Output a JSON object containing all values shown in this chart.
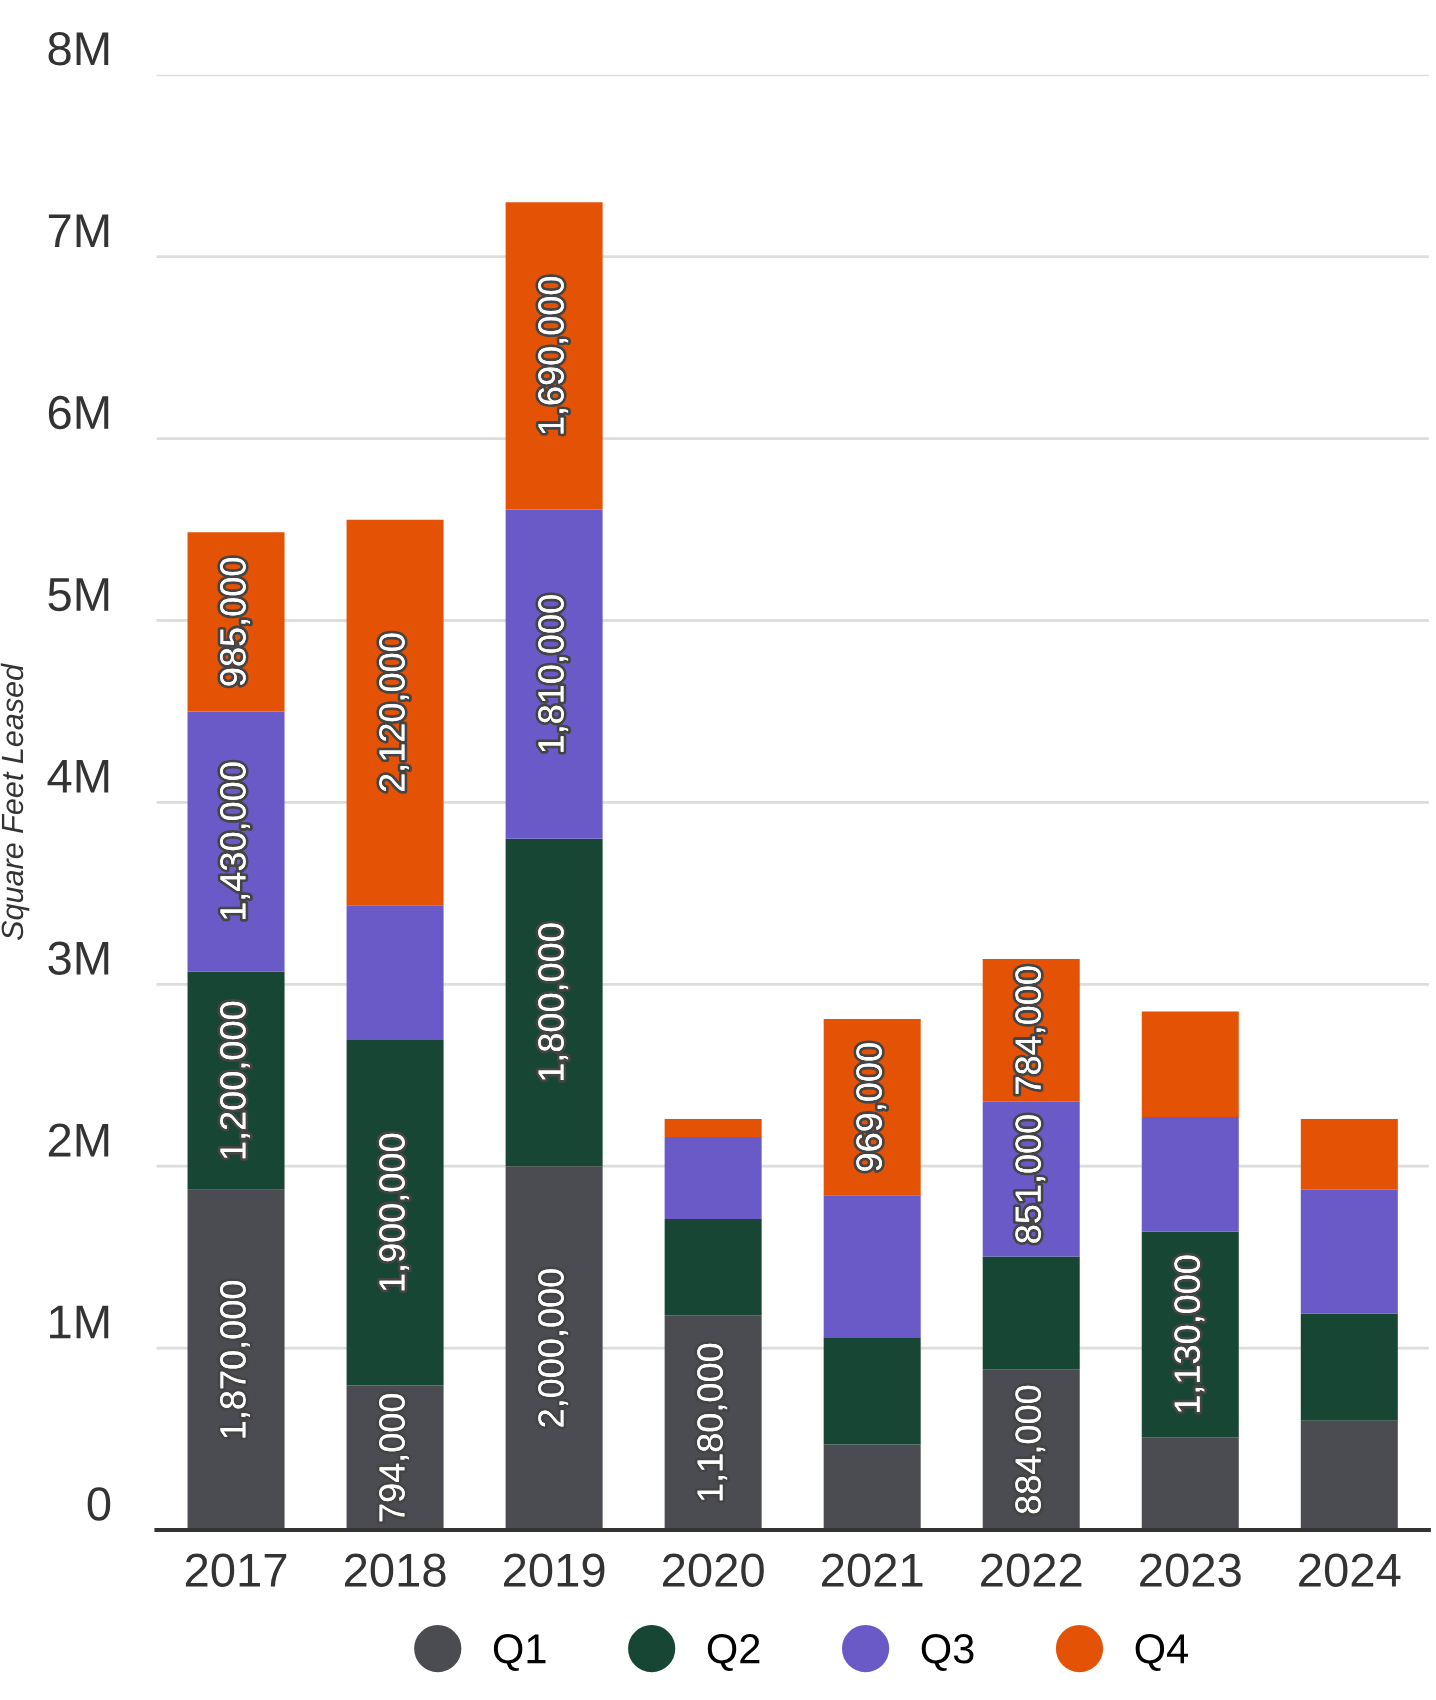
{
  "chart_data": {
    "type": "bar",
    "stacked": true,
    "ylabel": "Square Feet Leased",
    "categories": [
      "2017",
      "2018",
      "2019",
      "2020",
      "2021",
      "2022",
      "2023",
      "2024"
    ],
    "series": [
      {
        "name": "Q1",
        "color": "#4a4c51",
        "values": [
          1870000,
          794000,
          2000000,
          1180000,
          470000,
          884000,
          510000,
          600000
        ],
        "value_labels": [
          "1,870,000",
          "794,000",
          "2,000,000",
          "1,180,000",
          null,
          "884,000",
          null,
          null
        ]
      },
      {
        "name": "Q2",
        "color": "#174734",
        "values": [
          1200000,
          1900000,
          1800000,
          530000,
          590000,
          620000,
          1130000,
          590000
        ],
        "value_labels": [
          "1,200,000",
          "1,900,000",
          "1,800,000",
          null,
          null,
          null,
          "1,130,000",
          null
        ]
      },
      {
        "name": "Q3",
        "color": "#6a5ac8",
        "values": [
          1430000,
          740000,
          1810000,
          450000,
          780000,
          851000,
          630000,
          680000
        ],
        "value_labels": [
          "1,430,000",
          null,
          "1,810,000",
          null,
          null,
          "851,000",
          null,
          null
        ]
      },
      {
        "name": "Q4",
        "color": "#e35205",
        "values": [
          985000,
          2120000,
          1690000,
          100000,
          969000,
          784000,
          580000,
          390000
        ],
        "value_labels": [
          "985,000",
          "2,120,000",
          "1,690,000",
          null,
          "969,000",
          "784,000",
          null,
          null
        ]
      }
    ],
    "ylim": [
      0,
      8000000
    ],
    "yticks": [
      {
        "value": 0,
        "label": "0"
      },
      {
        "value": 1000000,
        "label": "1M"
      },
      {
        "value": 2000000,
        "label": "2M"
      },
      {
        "value": 3000000,
        "label": "3M"
      },
      {
        "value": 4000000,
        "label": "4M"
      },
      {
        "value": 5000000,
        "label": "5M"
      },
      {
        "value": 6000000,
        "label": "6M"
      },
      {
        "value": 7000000,
        "label": "7M"
      },
      {
        "value": 8000000,
        "label": "8M"
      }
    ],
    "grid": "y",
    "legend": "bottom",
    "marker": "circle"
  }
}
